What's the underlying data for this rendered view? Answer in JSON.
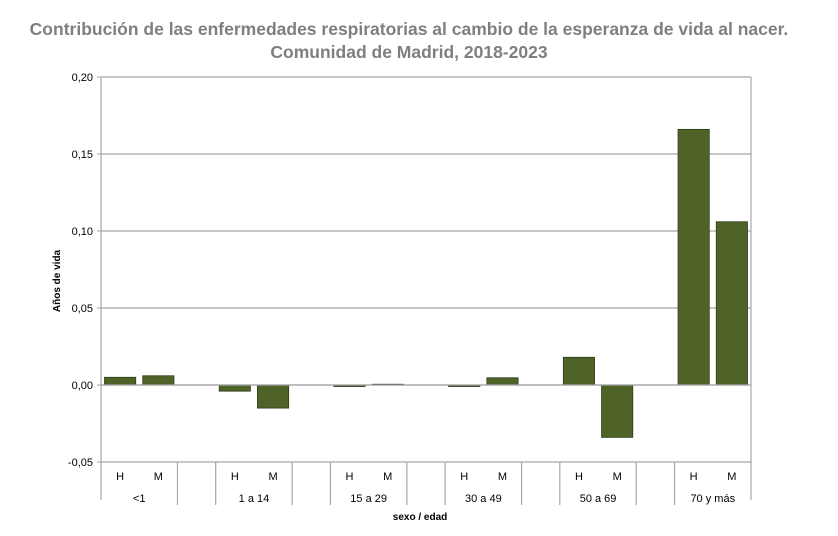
{
  "chart_data": {
    "type": "bar",
    "title": "Contribución de las enfermedades respiratorias al cambio de la esperanza de vida al nacer. Comunidad de Madrid, 2018-2023",
    "xlabel": "sexo / edad",
    "ylabel": "Años de vida",
    "ylim": [
      -0.05,
      0.2
    ],
    "yticks": [
      "-0,05",
      "0,00",
      "0,05",
      "0,10",
      "0,15",
      "0,20"
    ],
    "grid": true,
    "bar_color": "#4f6228",
    "groups": [
      {
        "label": "<1",
        "subcategories": [
          "H",
          "M"
        ],
        "values": [
          0.005,
          0.006
        ]
      },
      {
        "label": "1 a 14",
        "subcategories": [
          "H",
          "M"
        ],
        "values": [
          -0.004,
          -0.015
        ]
      },
      {
        "label": "15 a 29",
        "subcategories": [
          "H",
          "M"
        ],
        "values": [
          -0.001,
          0.0005
        ]
      },
      {
        "label": "30 a 49",
        "subcategories": [
          "H",
          "M"
        ],
        "values": [
          -0.001,
          0.0047
        ]
      },
      {
        "label": "50 a 69",
        "subcategories": [
          "H",
          "M"
        ],
        "values": [
          0.018,
          -0.034
        ]
      },
      {
        "label": "70 y más",
        "subcategories": [
          "H",
          "M"
        ],
        "values": [
          0.166,
          0.106
        ]
      }
    ]
  }
}
